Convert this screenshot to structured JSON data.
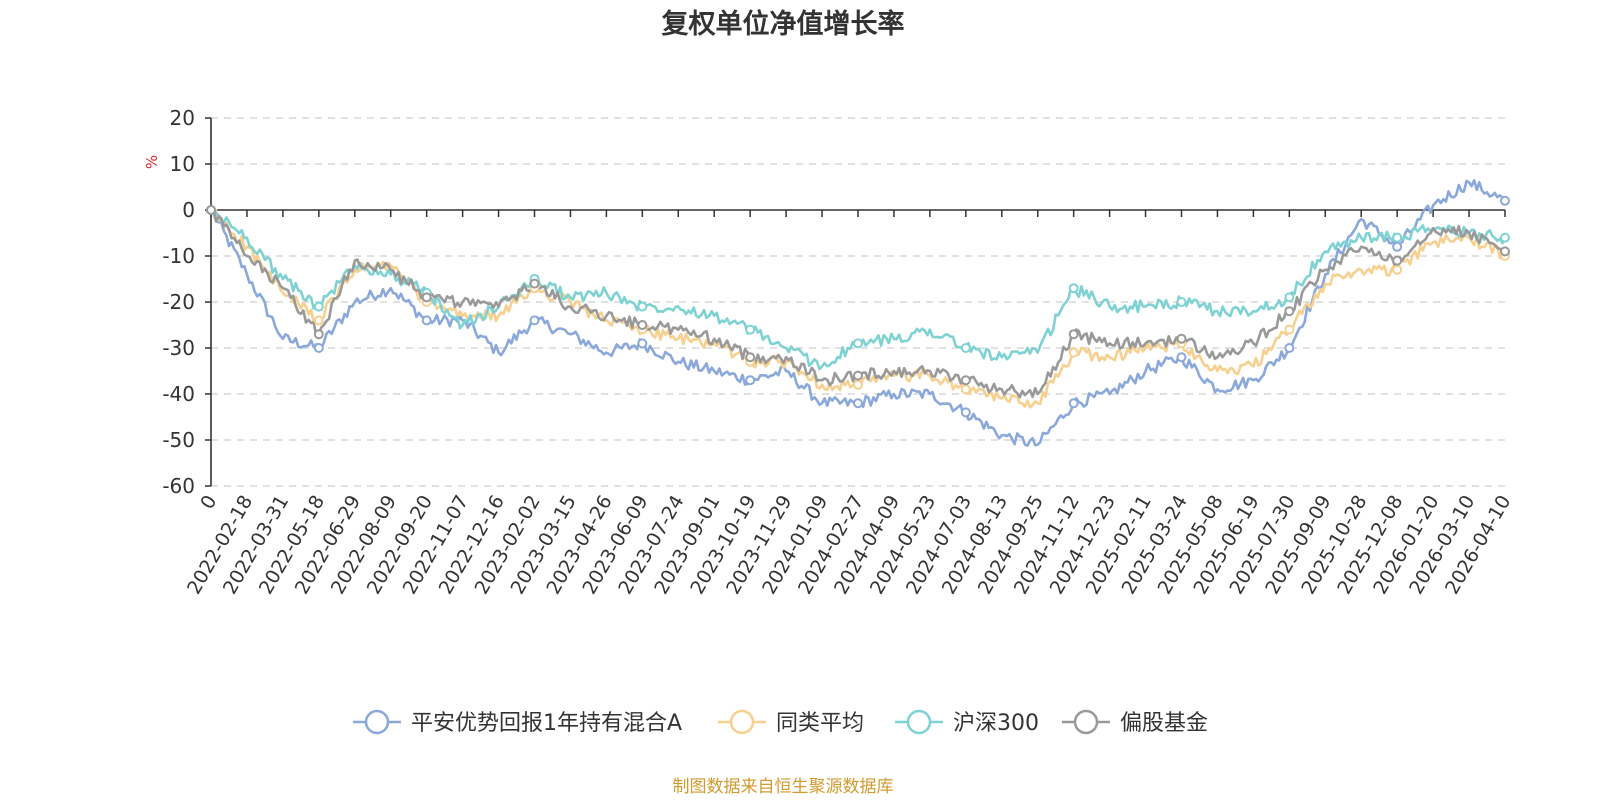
{
  "chart_data": {
    "type": "line",
    "title": "复权单位净值增长率",
    "ylabel": "%",
    "xlabel": "",
    "ylim": [
      -60,
      20
    ],
    "yticks": [
      20,
      10,
      0,
      -10,
      -20,
      -30,
      -40,
      -50,
      -60
    ],
    "categories": [
      "0",
      "2022-02-18",
      "2022-03-31",
      "2022-05-18",
      "2022-06-29",
      "2022-08-09",
      "2022-09-20",
      "2022-11-07",
      "2022-12-16",
      "2023-02-02",
      "2023-03-15",
      "2023-04-26",
      "2023-06-09",
      "2023-07-24",
      "2023-09-01",
      "2023-10-19",
      "2023-11-29",
      "2024-01-09",
      "2024-02-27",
      "2024-04-09",
      "2024-05-23",
      "2024-07-03",
      "2024-08-13",
      "2024-09-25",
      "2024-11-12",
      "2024-12-23",
      "2025-02-11",
      "2025-03-24",
      "2025-05-08",
      "2025-06-19",
      "2025-07-30",
      "2025-09-09",
      "2025-10-28",
      "2025-12-08",
      "2026-01-20",
      "2026-03-10",
      "2026-04-10"
    ],
    "series": [
      {
        "name": "平安优势回报1年持有混合A",
        "color": "#8aa8d9",
        "values": [
          0,
          -14,
          -28,
          -30,
          -20,
          -17,
          -24,
          -24,
          -31,
          -24,
          -27,
          -31,
          -29,
          -33,
          -35,
          -37,
          -35,
          -42,
          -42,
          -40,
          -40,
          -44,
          -49,
          -51,
          -42,
          -40,
          -35,
          -32,
          -39,
          -37,
          -30,
          -14,
          -2,
          -8,
          1,
          6,
          2
        ]
      },
      {
        "name": "同类平均",
        "color": "#f7d08f",
        "values": [
          0,
          -8,
          -18,
          -24,
          -13,
          -12,
          -20,
          -23,
          -23,
          -17,
          -20,
          -24,
          -26,
          -28,
          -29,
          -33,
          -33,
          -38,
          -38,
          -36,
          -36,
          -39,
          -41,
          -42,
          -31,
          -32,
          -30,
          -29,
          -35,
          -34,
          -26,
          -16,
          -13,
          -13,
          -7,
          -6,
          -10
        ]
      },
      {
        "name": "沪深300",
        "color": "#7fd2d4",
        "values": [
          0,
          -6,
          -15,
          -21,
          -12,
          -14,
          -18,
          -25,
          -21,
          -15,
          -19,
          -18,
          -21,
          -21,
          -23,
          -26,
          -30,
          -34,
          -29,
          -28,
          -26,
          -30,
          -32,
          -31,
          -17,
          -21,
          -21,
          -20,
          -22,
          -22,
          -19,
          -9,
          -6,
          -6,
          -4,
          -5,
          -6
        ]
      },
      {
        "name": "偏股基金",
        "color": "#999999",
        "values": [
          0,
          -10,
          -17,
          -27,
          -11,
          -13,
          -19,
          -20,
          -21,
          -16,
          -21,
          -23,
          -25,
          -26,
          -28,
          -32,
          -32,
          -37,
          -36,
          -35,
          -35,
          -37,
          -39,
          -40,
          -27,
          -29,
          -29,
          -28,
          -32,
          -29,
          -22,
          -13,
          -8,
          -11,
          -4,
          -5,
          -9
        ]
      }
    ],
    "legend_position": "bottom-center"
  },
  "footer": {
    "source": "制图数据来自恒生聚源数据库"
  }
}
